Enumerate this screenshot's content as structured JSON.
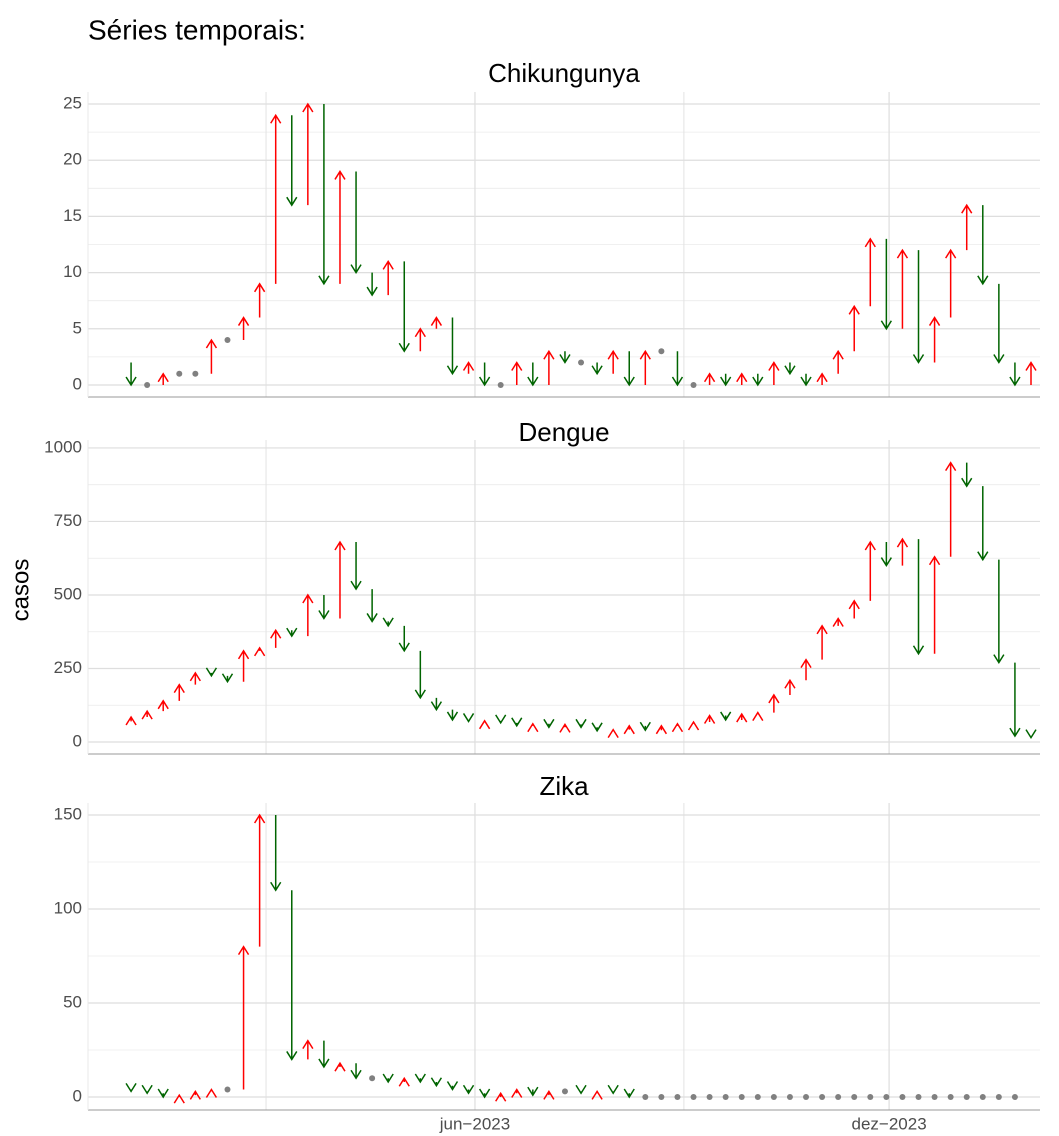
{
  "page_title": "Séries temporais:",
  "y_label": "casos",
  "chart_data": [
    {
      "type": "arrow",
      "title": "Chikungunya",
      "up_color": "#ff0000",
      "down_color": "#006400",
      "flat_color": "#808080",
      "values": [
        2,
        0,
        0,
        1,
        1,
        1,
        4,
        4,
        6,
        9,
        24,
        16,
        25,
        9,
        19,
        10,
        8,
        11,
        3,
        5,
        6,
        1,
        2,
        0,
        0,
        2,
        0,
        3,
        2,
        2,
        1,
        3,
        0,
        3,
        3,
        0,
        0,
        1,
        0,
        1,
        0,
        2,
        1,
        0,
        1,
        3,
        7,
        13,
        5,
        12,
        2,
        6,
        12,
        16,
        9,
        2,
        0,
        2
      ],
      "ylim": [
        -1.07,
        26.07
      ],
      "yticks": [
        0,
        5,
        10,
        15,
        20,
        25
      ],
      "grid": true
    },
    {
      "type": "arrow",
      "title": "Dengue",
      "up_color": "#ff0000",
      "down_color": "#006400",
      "flat_color": "#808080",
      "values": [
        70,
        85,
        105,
        140,
        195,
        235,
        225,
        205,
        310,
        320,
        380,
        360,
        500,
        420,
        680,
        520,
        410,
        395,
        310,
        150,
        110,
        75,
        70,
        72,
        65,
        55,
        62,
        50,
        60,
        50,
        38,
        42,
        55,
        40,
        55,
        62,
        68,
        90,
        75,
        95,
        100,
        160,
        210,
        280,
        395,
        420,
        480,
        680,
        600,
        690,
        300,
        630,
        950,
        870,
        620,
        270,
        20,
        15
      ],
      "ylim": [
        -40.8,
        1027
      ],
      "yticks": [
        0,
        250,
        500,
        750,
        1000
      ],
      "grid": true
    },
    {
      "type": "arrow",
      "title": "Zika",
      "up_color": "#ff0000",
      "down_color": "#006400",
      "flat_color": "#808080",
      "values": [
        4,
        3,
        2,
        0,
        1,
        3,
        4,
        4,
        80,
        150,
        110,
        20,
        30,
        16,
        18,
        10,
        10,
        8,
        10,
        8,
        6,
        4,
        2,
        0,
        2,
        4,
        1,
        3,
        3,
        2,
        3,
        2,
        0,
        0,
        0,
        0,
        0,
        0,
        0,
        0,
        0,
        0,
        0,
        0,
        0,
        0,
        0,
        0,
        0,
        0,
        0,
        0,
        0,
        0,
        0,
        0,
        0,
        null
      ],
      "ylim": [
        -6.9,
        156.4
      ],
      "yticks": [
        0,
        50,
        100,
        150
      ],
      "grid": true,
      "xlim": [
        -1.68,
        57.56
      ],
      "xticks": [
        {
          "value": 22.4,
          "label": "jun−2023"
        },
        {
          "value": 48.17,
          "label": "dez−2023"
        }
      ],
      "x_minor_ticks": [
        9.4,
        35.4
      ]
    }
  ]
}
